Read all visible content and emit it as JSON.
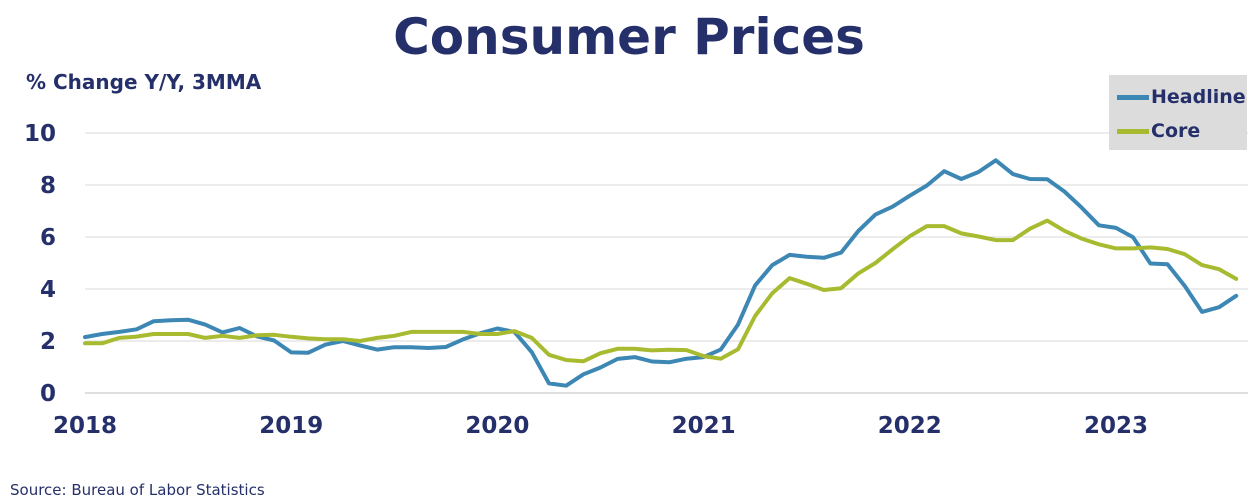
{
  "chart_data": {
    "type": "line",
    "title": "Consumer Prices",
    "ylabel": "% Change Y/Y, 3MMA",
    "source": "Source:  Bureau of Labor Statistics",
    "ylim": [
      0,
      10
    ],
    "yticks": [
      "0",
      "2",
      "4",
      "6",
      "8",
      "10"
    ],
    "xlim": [
      2018,
      2023.67
    ],
    "xticks": [
      "2018",
      "2019",
      "2020",
      "2021",
      "2022",
      "2023"
    ],
    "grid": "horizontal",
    "legend_position": "top-right",
    "series": [
      {
        "name": "Headline",
        "color": "#3c87b4",
        "x": [
          2018.0,
          2018.083,
          2018.167,
          2018.25,
          2018.333,
          2018.417,
          2018.5,
          2018.583,
          2018.667,
          2018.75,
          2018.833,
          2018.917,
          2019.0,
          2019.083,
          2019.167,
          2019.25,
          2019.333,
          2019.417,
          2019.5,
          2019.583,
          2019.667,
          2019.75,
          2019.833,
          2019.917,
          2020.0,
          2020.083,
          2020.167,
          2020.25,
          2020.333,
          2020.417,
          2020.5,
          2020.583,
          2020.667,
          2020.75,
          2020.833,
          2020.917,
          2021.0,
          2021.083,
          2021.167,
          2021.25,
          2021.333,
          2021.417,
          2021.5,
          2021.583,
          2021.667,
          2021.75,
          2021.833,
          2021.917,
          2022.0,
          2022.083,
          2022.167,
          2022.25,
          2022.333,
          2022.417,
          2022.5,
          2022.583,
          2022.667,
          2022.75,
          2022.833,
          2022.917,
          2023.0,
          2023.083,
          2023.167,
          2023.25,
          2023.333,
          2023.417,
          2023.5,
          2023.583
        ],
        "values": [
          2.15,
          2.27,
          2.35,
          2.45,
          2.76,
          2.8,
          2.82,
          2.63,
          2.33,
          2.5,
          2.18,
          2.02,
          1.56,
          1.55,
          1.86,
          2.0,
          1.83,
          1.67,
          1.76,
          1.76,
          1.73,
          1.77,
          2.06,
          2.3,
          2.48,
          2.35,
          1.57,
          0.37,
          0.28,
          0.72,
          0.98,
          1.31,
          1.38,
          1.21,
          1.18,
          1.32,
          1.38,
          1.67,
          2.63,
          4.14,
          4.92,
          5.31,
          5.24,
          5.2,
          5.4,
          6.23,
          6.86,
          7.17,
          7.59,
          7.98,
          8.53,
          8.23,
          8.5,
          8.95,
          8.42,
          8.23,
          8.22,
          7.75,
          7.13,
          6.45,
          6.35,
          5.99,
          4.98,
          4.95,
          4.12,
          3.12,
          3.3,
          3.74
        ]
      },
      {
        "name": "Core",
        "color": "#a8bb30",
        "x": [
          2018.0,
          2018.083,
          2018.167,
          2018.25,
          2018.333,
          2018.417,
          2018.5,
          2018.583,
          2018.667,
          2018.75,
          2018.833,
          2018.917,
          2019.0,
          2019.083,
          2019.167,
          2019.25,
          2019.333,
          2019.417,
          2019.5,
          2019.583,
          2019.667,
          2019.75,
          2019.833,
          2019.917,
          2020.0,
          2020.083,
          2020.167,
          2020.25,
          2020.333,
          2020.417,
          2020.5,
          2020.583,
          2020.667,
          2020.75,
          2020.833,
          2020.917,
          2021.0,
          2021.083,
          2021.167,
          2021.25,
          2021.333,
          2021.417,
          2021.5,
          2021.583,
          2021.667,
          2021.75,
          2021.833,
          2021.917,
          2022.0,
          2022.083,
          2022.167,
          2022.25,
          2022.333,
          2022.417,
          2022.5,
          2022.583,
          2022.667,
          2022.75,
          2022.833,
          2022.917,
          2023.0,
          2023.083,
          2023.167,
          2023.25,
          2023.333,
          2023.417,
          2023.5,
          2023.583
        ],
        "values": [
          1.91,
          1.91,
          2.12,
          2.17,
          2.27,
          2.27,
          2.27,
          2.12,
          2.2,
          2.12,
          2.22,
          2.24,
          2.16,
          2.1,
          2.07,
          2.07,
          2.0,
          2.12,
          2.2,
          2.35,
          2.35,
          2.35,
          2.35,
          2.27,
          2.27,
          2.38,
          2.12,
          1.47,
          1.27,
          1.22,
          1.53,
          1.7,
          1.7,
          1.64,
          1.66,
          1.65,
          1.42,
          1.32,
          1.68,
          2.96,
          3.84,
          4.42,
          4.2,
          3.96,
          4.03,
          4.6,
          5.0,
          5.53,
          6.03,
          6.42,
          6.42,
          6.14,
          6.02,
          5.88,
          5.88,
          6.32,
          6.63,
          6.24,
          5.94,
          5.72,
          5.56,
          5.56,
          5.6,
          5.54,
          5.34,
          4.92,
          4.76,
          4.39
        ]
      }
    ]
  }
}
